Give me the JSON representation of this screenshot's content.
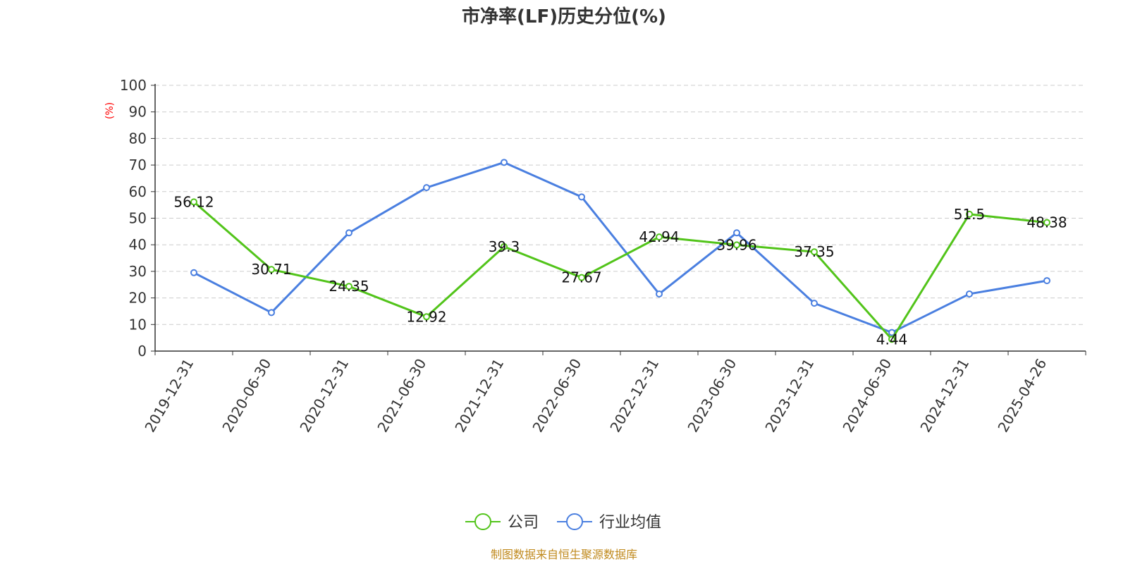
{
  "colors": {
    "company": "#52c41a",
    "industry": "#4a7fe0",
    "unit": "#ff0000",
    "source": "#c08a1e"
  },
  "chart_data": {
    "type": "line",
    "title": "市净率(LF)历史分位(%)",
    "ylabel": "(%)",
    "ylim": [
      0,
      100
    ],
    "yticks": [
      "0",
      "10",
      "20",
      "30",
      "40",
      "50",
      "60",
      "70",
      "80",
      "90",
      "100"
    ],
    "categories": [
      "2019-12-31",
      "2020-06-30",
      "2020-12-31",
      "2021-06-30",
      "2021-12-31",
      "2022-06-30",
      "2022-12-31",
      "2023-06-30",
      "2023-12-31",
      "2024-06-30",
      "2024-12-31",
      "2025-04-26"
    ],
    "series": [
      {
        "name": "公司",
        "values": [
          56.12,
          30.71,
          24.35,
          12.92,
          39.3,
          27.67,
          42.94,
          39.96,
          37.35,
          4.44,
          51.5,
          48.38
        ],
        "labels": [
          "56.12",
          "30.71",
          "24.35",
          "12.92",
          "39.3",
          "27.67",
          "42.94",
          "39.96",
          "37.35",
          "4.44",
          "51.5",
          "48.38"
        ]
      },
      {
        "name": "行业均值",
        "values": [
          29.5,
          14.5,
          44.5,
          61.5,
          71.0,
          58.0,
          21.5,
          44.5,
          18.0,
          7.0,
          21.5,
          26.5
        ]
      }
    ],
    "grid": true,
    "legend": "bottom-center"
  },
  "source": "制图数据来自恒生聚源数据库"
}
